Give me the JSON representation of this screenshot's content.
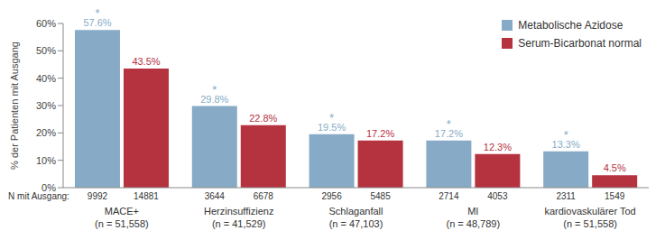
{
  "chart_data": {
    "type": "bar",
    "y_label": "% der Patienten mit Ausgang",
    "categories": [
      "MACE+",
      "Herzinsuffizienz",
      "Schlaganfall",
      "MI",
      "kardiovaskulärer Tod"
    ],
    "category_n": [
      "(n = 51,558)",
      "(n = 41,529)",
      "(n = 47,103)",
      "(n = 48,789)",
      "(n = 51,558)"
    ],
    "counts_label": "N mit Ausgang:",
    "series": [
      {
        "name": "Metabolische Azidose",
        "color": "#87abc6",
        "values": [
          57.6,
          29.8,
          19.5,
          17.2,
          13.3
        ],
        "value_labels": [
          "57.6%",
          "29.8%",
          "19.5%",
          "17.2%",
          "13.3%"
        ],
        "counts": [
          9992,
          3644,
          2956,
          2714,
          2311
        ],
        "annotation": "*"
      },
      {
        "name": "Serum-Bicarbonat normal",
        "color": "#b5323f",
        "values": [
          43.5,
          22.8,
          17.2,
          12.3,
          4.5
        ],
        "value_labels": [
          "43.5%",
          "22.8%",
          "17.2%",
          "12.3%",
          "4.5%"
        ],
        "counts": [
          14881,
          6678,
          5485,
          4053,
          1549
        ]
      }
    ],
    "ylim": [
      0,
      60
    ],
    "yticks": [
      {
        "value": 0,
        "label": "0%"
      },
      {
        "value": 10,
        "label": "10%"
      },
      {
        "value": 20,
        "label": "20%"
      },
      {
        "value": 30,
        "label": "30%"
      },
      {
        "value": 40,
        "label": "40%"
      },
      {
        "value": 50,
        "label": "50%"
      },
      {
        "value": 60,
        "label": "60%"
      }
    ],
    "grid": false,
    "legend": "top right",
    "data_labels": true
  }
}
